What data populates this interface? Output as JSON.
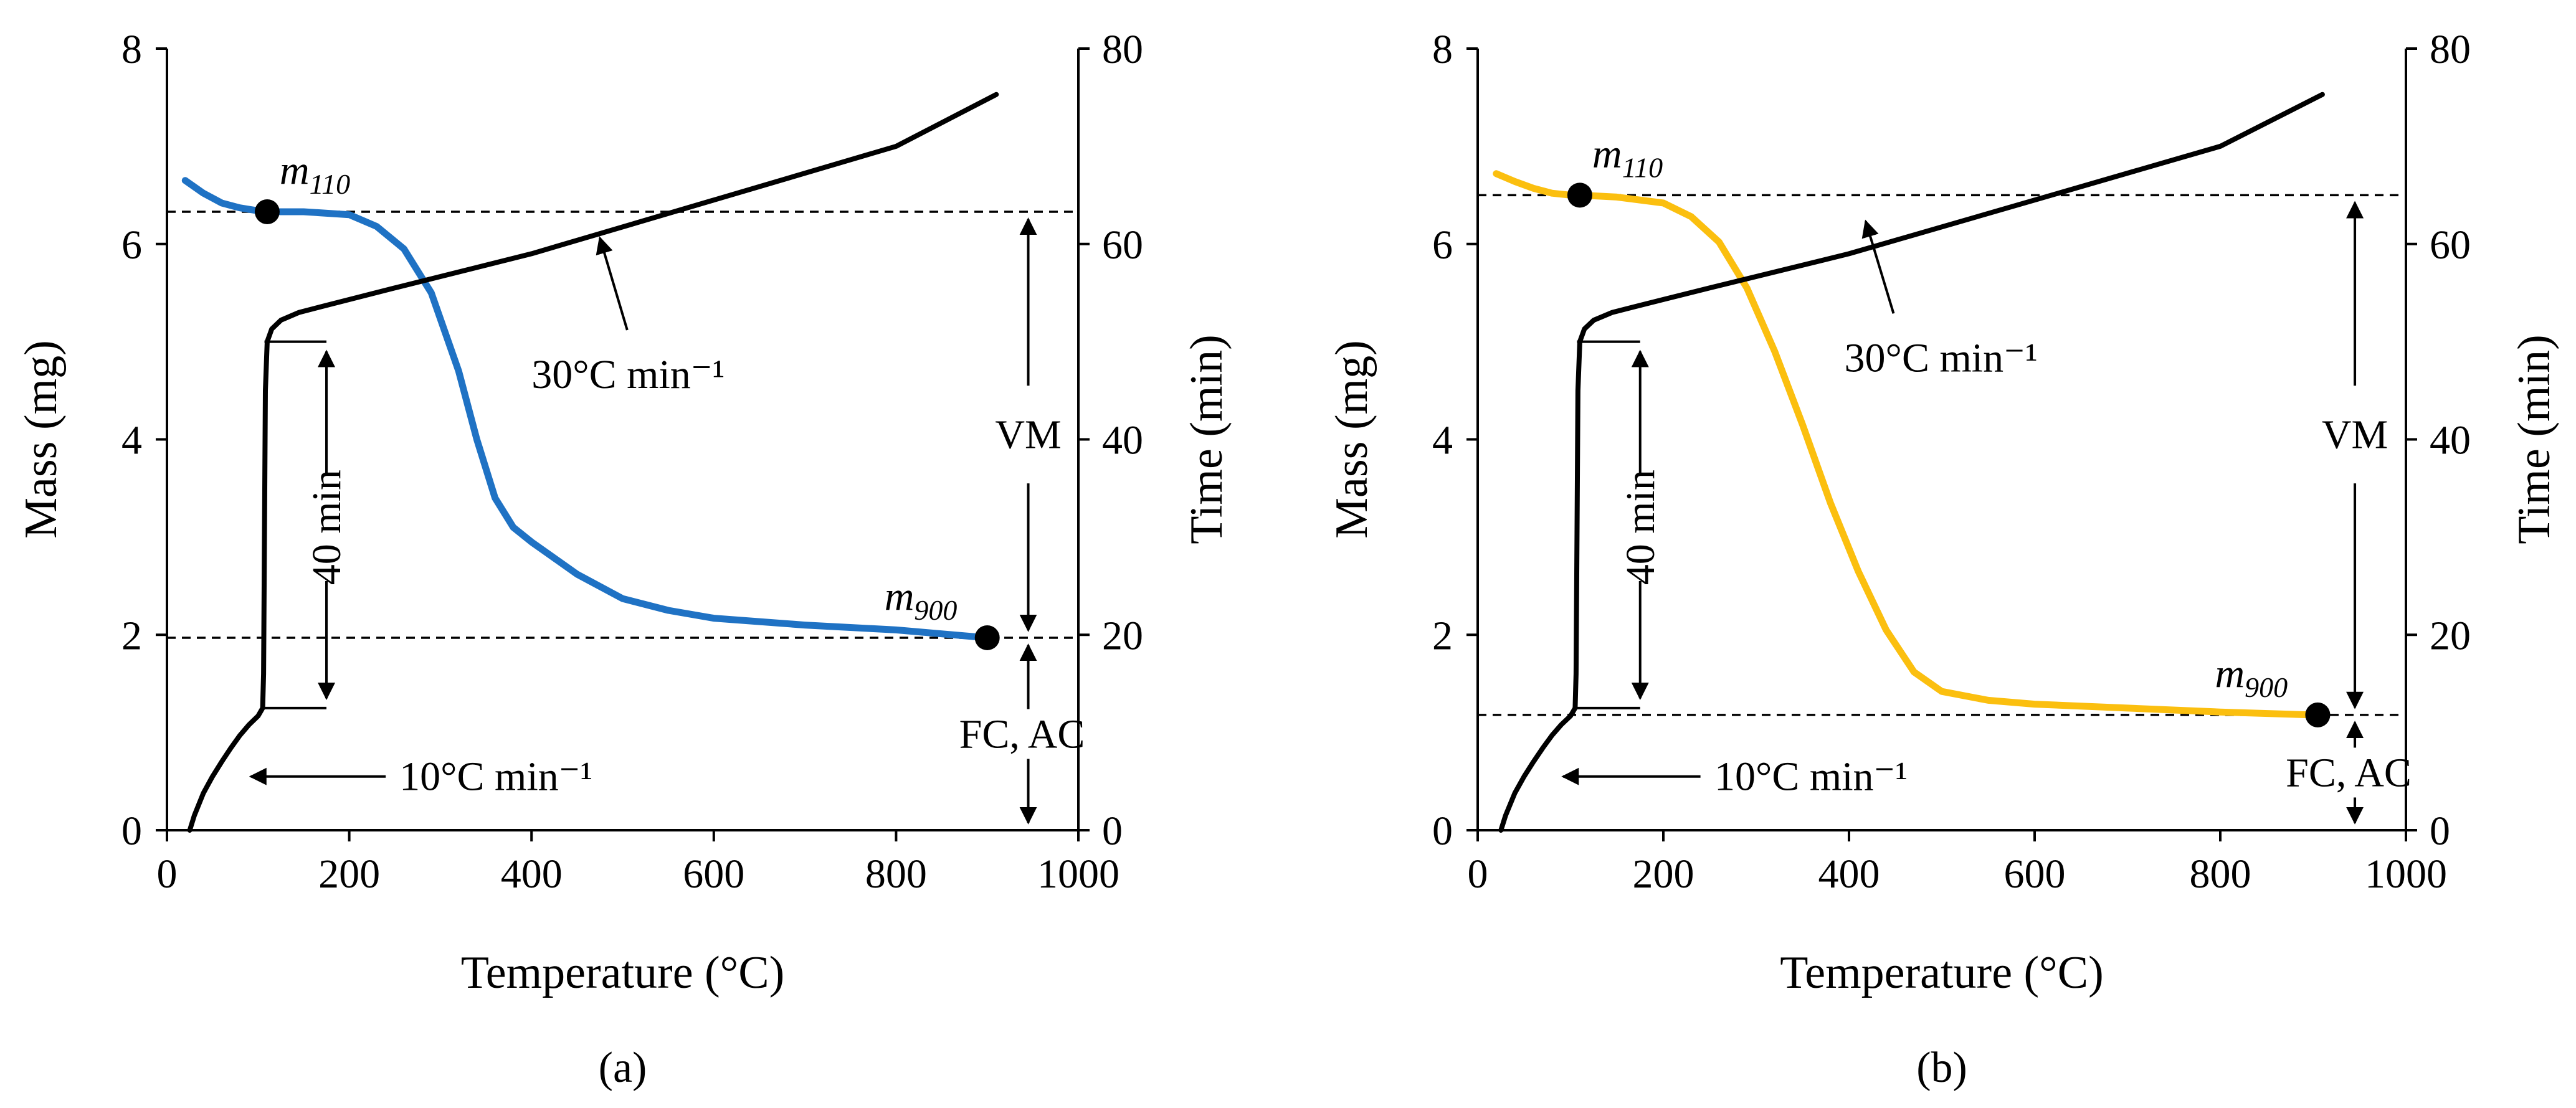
{
  "chart_data": [
    {
      "type": "line",
      "panel_label": "(a)",
      "xlabel": "Temperature (°C)",
      "ylabel": "Mass (mg)",
      "y2label": "Time (min)",
      "xlim": [
        0,
        1000
      ],
      "ylim": [
        0,
        8
      ],
      "y2lim": [
        0,
        80
      ],
      "xticks": [
        "0",
        "200",
        "400",
        "600",
        "800",
        "1000"
      ],
      "yticks": [
        "0",
        "2",
        "4",
        "6",
        "8"
      ],
      "y2ticks": [
        "0",
        "20",
        "40",
        "60",
        "80"
      ],
      "grid": false,
      "series": [
        {
          "axis": "left",
          "color": "#1f72c4",
          "x": [
            20,
            40,
            60,
            80,
            100,
            110,
            150,
            200,
            230,
            260,
            290,
            320,
            340,
            360,
            380,
            400,
            450,
            500,
            550,
            600,
            700,
            800,
            900
          ],
          "y": [
            6.65,
            6.52,
            6.42,
            6.37,
            6.34,
            6.33,
            6.33,
            6.3,
            6.18,
            5.95,
            5.5,
            4.7,
            4.0,
            3.4,
            3.1,
            2.95,
            2.62,
            2.37,
            2.25,
            2.17,
            2.1,
            2.05,
            1.97
          ]
        },
        {
          "axis": "right",
          "color": "#000000",
          "x": [
            25,
            30,
            40,
            50,
            60,
            70,
            80,
            90,
            100,
            105,
            106,
            107,
            108,
            110,
            115,
            125,
            145,
            170,
            250,
            400,
            600,
            800,
            910
          ],
          "y": [
            0,
            1.5,
            3.8,
            5.5,
            7.0,
            8.4,
            9.7,
            10.8,
            11.7,
            12.5,
            16,
            30,
            45,
            50,
            51.3,
            52.2,
            53.0,
            53.6,
            55.5,
            59.0,
            64.5,
            70.0,
            75.3
          ]
        }
      ],
      "points": [
        {
          "label": "m",
          "sub": "110",
          "x": 110,
          "y": 6.33
        },
        {
          "label": "m",
          "sub": "900",
          "x": 900,
          "y": 1.97
        }
      ],
      "hlines": [
        6.33,
        1.97
      ],
      "annotations": {
        "rate_high": "30°C min⁻¹",
        "rate_low": "10°C min⁻¹",
        "hold": "40 min",
        "vm": "VM",
        "fc": "FC, AC"
      }
    },
    {
      "type": "line",
      "panel_label": "(b)",
      "xlabel": "Temperature (°C)",
      "ylabel": "Mass (mg)",
      "y2label": "Time (min)",
      "xlim": [
        0,
        1000
      ],
      "ylim": [
        0,
        8
      ],
      "y2lim": [
        0,
        80
      ],
      "xticks": [
        "0",
        "200",
        "400",
        "600",
        "800",
        "1000"
      ],
      "yticks": [
        "0",
        "2",
        "4",
        "6",
        "8"
      ],
      "y2ticks": [
        "0",
        "20",
        "40",
        "60",
        "80"
      ],
      "grid": false,
      "series": [
        {
          "axis": "left",
          "color": "#fbbf0f",
          "x": [
            20,
            40,
            60,
            80,
            100,
            110,
            150,
            200,
            230,
            260,
            290,
            320,
            350,
            380,
            410,
            440,
            470,
            500,
            550,
            600,
            700,
            800,
            900
          ],
          "y": [
            6.72,
            6.64,
            6.57,
            6.52,
            6.5,
            6.5,
            6.48,
            6.42,
            6.28,
            6.02,
            5.55,
            4.9,
            4.15,
            3.35,
            2.65,
            2.05,
            1.62,
            1.42,
            1.33,
            1.29,
            1.25,
            1.21,
            1.18
          ]
        },
        {
          "axis": "right",
          "color": "#000000",
          "x": [
            25,
            30,
            40,
            50,
            60,
            70,
            80,
            90,
            100,
            105,
            106,
            107,
            108,
            110,
            115,
            125,
            145,
            170,
            250,
            400,
            600,
            800,
            910
          ],
          "y": [
            0,
            1.5,
            3.8,
            5.5,
            7.0,
            8.4,
            9.7,
            10.8,
            11.7,
            12.5,
            16,
            30,
            45,
            50,
            51.3,
            52.2,
            53.0,
            53.6,
            55.5,
            59.0,
            64.5,
            70.0,
            75.3
          ]
        }
      ],
      "points": [
        {
          "label": "m",
          "sub": "110",
          "x": 110,
          "y": 6.5
        },
        {
          "label": "m",
          "sub": "900",
          "x": 905,
          "y": 1.18
        }
      ],
      "hlines": [
        6.5,
        1.18
      ],
      "annotations": {
        "rate_high": "30°C min⁻¹",
        "rate_low": "10°C min⁻¹",
        "hold": "40 min",
        "vm": "VM",
        "fc": "FC, AC"
      }
    }
  ]
}
